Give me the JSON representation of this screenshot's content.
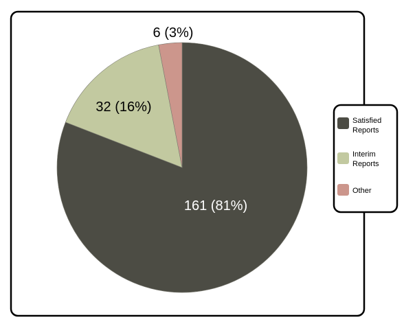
{
  "chart_data": {
    "type": "pie",
    "categories": [
      "Satisfied Reports",
      "Interim Reports",
      "Other"
    ],
    "values": [
      161,
      32,
      6
    ],
    "percentages": [
      81,
      16,
      3
    ],
    "data_labels": [
      "161 (81%)",
      "32 (16%)",
      "6 (3%)"
    ],
    "legend": {
      "placement": "right",
      "entries": [
        {
          "line1": "Satisfied",
          "line2": "Reports"
        },
        {
          "line1": "Interim",
          "line2": "Reports"
        },
        {
          "line1": "Other",
          "line2": ""
        }
      ]
    },
    "colors": [
      "#4c4c44",
      "#c2c9a0",
      "#cc968c"
    ],
    "start_angle_deg": 0,
    "direction": "clockwise"
  }
}
